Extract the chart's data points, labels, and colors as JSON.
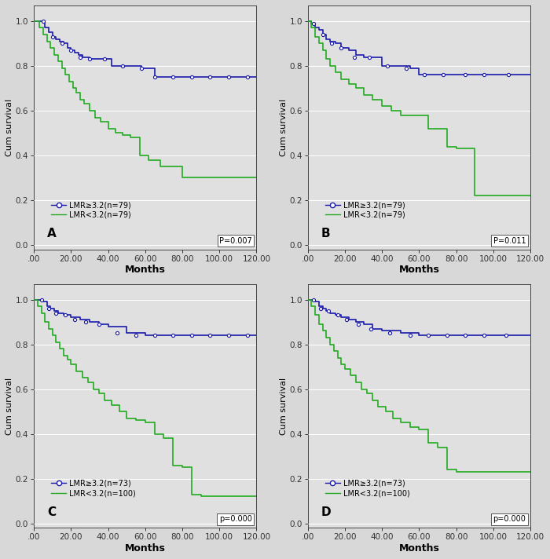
{
  "fig_bg": "#d8d8d8",
  "panel_bg": "#e0e0e0",
  "panels": [
    {
      "label": "A",
      "pvalue": "P=0.007",
      "legend_high": "LMR≥3.2(n=79)",
      "legend_low": "LMR<3.2(n=79)",
      "high_color": "#1a1aaa",
      "low_color": "#22aa22",
      "high_x": [
        0,
        4,
        6,
        8,
        10,
        12,
        14,
        16,
        18,
        20,
        22,
        24,
        26,
        28,
        30,
        34,
        38,
        42,
        50,
        58,
        62,
        65,
        70,
        75,
        80,
        90,
        100,
        110,
        120
      ],
      "high_y": [
        1.0,
        1.0,
        0.97,
        0.95,
        0.93,
        0.92,
        0.91,
        0.9,
        0.88,
        0.87,
        0.86,
        0.85,
        0.84,
        0.84,
        0.83,
        0.83,
        0.83,
        0.8,
        0.8,
        0.79,
        0.79,
        0.75,
        0.75,
        0.75,
        0.75,
        0.75,
        0.75,
        0.75,
        0.75
      ],
      "high_censor_x": [
        5,
        10,
        15,
        20,
        25,
        30,
        38,
        48,
        58,
        65,
        75,
        85,
        95,
        105,
        115
      ],
      "high_censor_y": [
        1.0,
        0.93,
        0.9,
        0.87,
        0.84,
        0.83,
        0.83,
        0.8,
        0.79,
        0.75,
        0.75,
        0.75,
        0.75,
        0.75,
        0.75
      ],
      "low_x": [
        0,
        3,
        5,
        7,
        9,
        11,
        13,
        15,
        17,
        19,
        21,
        23,
        25,
        27,
        30,
        33,
        36,
        40,
        44,
        48,
        52,
        55,
        57,
        62,
        68,
        80,
        88,
        92,
        100,
        110,
        120
      ],
      "low_y": [
        1.0,
        0.97,
        0.94,
        0.91,
        0.88,
        0.85,
        0.82,
        0.79,
        0.76,
        0.73,
        0.7,
        0.68,
        0.65,
        0.63,
        0.6,
        0.57,
        0.55,
        0.52,
        0.5,
        0.49,
        0.48,
        0.48,
        0.4,
        0.38,
        0.35,
        0.3,
        0.3,
        0.3,
        0.3,
        0.3,
        0.3
      ],
      "xlim": [
        0,
        120
      ],
      "ylim": [
        -0.02,
        1.07
      ],
      "xticks": [
        0,
        20,
        40,
        60,
        80,
        100,
        120
      ],
      "yticks": [
        0.0,
        0.2,
        0.4,
        0.6,
        0.8,
        1.0
      ]
    },
    {
      "label": "B",
      "pvalue": "P=0.011",
      "legend_high": "LMR≥3.2(n=79)",
      "legend_low": "LMR<3.2(n=79)",
      "high_color": "#1a1aaa",
      "low_color": "#22aa22",
      "high_x": [
        0,
        2,
        4,
        6,
        8,
        10,
        12,
        15,
        18,
        22,
        26,
        30,
        35,
        40,
        48,
        55,
        60,
        65,
        70,
        80,
        90,
        100,
        110,
        120
      ],
      "high_y": [
        1.0,
        0.99,
        0.97,
        0.96,
        0.94,
        0.92,
        0.91,
        0.9,
        0.88,
        0.87,
        0.85,
        0.84,
        0.84,
        0.8,
        0.8,
        0.79,
        0.76,
        0.76,
        0.76,
        0.76,
        0.76,
        0.76,
        0.76,
        0.76
      ],
      "high_censor_x": [
        3,
        8,
        13,
        18,
        25,
        33,
        43,
        53,
        63,
        73,
        85,
        95,
        108
      ],
      "high_censor_y": [
        0.99,
        0.94,
        0.9,
        0.88,
        0.84,
        0.84,
        0.8,
        0.79,
        0.76,
        0.76,
        0.76,
        0.76,
        0.76
      ],
      "low_x": [
        0,
        2,
        4,
        6,
        8,
        10,
        12,
        15,
        18,
        22,
        26,
        30,
        35,
        40,
        45,
        50,
        55,
        65,
        75,
        80,
        85,
        90,
        95,
        100,
        110,
        120
      ],
      "low_y": [
        1.0,
        0.97,
        0.93,
        0.9,
        0.87,
        0.83,
        0.8,
        0.77,
        0.74,
        0.72,
        0.7,
        0.67,
        0.65,
        0.62,
        0.6,
        0.58,
        0.58,
        0.52,
        0.44,
        0.43,
        0.43,
        0.22,
        0.22,
        0.22,
        0.22,
        0.22
      ],
      "xlim": [
        0,
        120
      ],
      "ylim": [
        -0.02,
        1.07
      ],
      "xticks": [
        0,
        20,
        40,
        60,
        80,
        100,
        120
      ],
      "yticks": [
        0.0,
        0.2,
        0.4,
        0.6,
        0.8,
        1.0
      ]
    },
    {
      "label": "C",
      "pvalue": "p=0.000",
      "legend_high": "LMR≥3.2(n=73)",
      "legend_low": "LMR<3.2(n=100)",
      "high_color": "#1a1aaa",
      "low_color": "#22aa22",
      "high_x": [
        0,
        3,
        5,
        7,
        9,
        11,
        13,
        16,
        20,
        25,
        30,
        35,
        40,
        50,
        60,
        70,
        80,
        90,
        100,
        110,
        120
      ],
      "high_y": [
        1.0,
        1.0,
        0.99,
        0.97,
        0.96,
        0.95,
        0.94,
        0.93,
        0.92,
        0.91,
        0.9,
        0.89,
        0.88,
        0.85,
        0.84,
        0.84,
        0.84,
        0.84,
        0.84,
        0.84,
        0.84
      ],
      "high_censor_x": [
        4,
        8,
        12,
        17,
        22,
        28,
        35,
        45,
        55,
        65,
        75,
        85,
        95,
        105,
        115
      ],
      "high_censor_y": [
        1.0,
        0.96,
        0.94,
        0.93,
        0.91,
        0.9,
        0.89,
        0.85,
        0.84,
        0.84,
        0.84,
        0.84,
        0.84,
        0.84,
        0.84
      ],
      "low_x": [
        0,
        2,
        4,
        6,
        8,
        10,
        12,
        14,
        16,
        18,
        20,
        23,
        26,
        29,
        32,
        35,
        38,
        42,
        46,
        50,
        55,
        60,
        65,
        70,
        75,
        80,
        85,
        90,
        100,
        110,
        120
      ],
      "low_y": [
        1.0,
        0.97,
        0.94,
        0.9,
        0.87,
        0.84,
        0.81,
        0.78,
        0.75,
        0.73,
        0.71,
        0.68,
        0.65,
        0.63,
        0.6,
        0.58,
        0.55,
        0.53,
        0.5,
        0.47,
        0.46,
        0.45,
        0.4,
        0.38,
        0.26,
        0.25,
        0.13,
        0.12,
        0.12,
        0.12,
        0.12
      ],
      "xlim": [
        0,
        120
      ],
      "ylim": [
        -0.02,
        1.07
      ],
      "xticks": [
        0,
        20,
        40,
        60,
        80,
        100,
        120
      ],
      "yticks": [
        0.0,
        0.2,
        0.4,
        0.6,
        0.8,
        1.0
      ]
    },
    {
      "label": "D",
      "pvalue": "p=0.000",
      "legend_high": "LMR≥3.2(n=73)",
      "legend_low": "LMR<3.2(n=100)",
      "high_color": "#1a1aaa",
      "low_color": "#22aa22",
      "high_x": [
        0,
        2,
        4,
        6,
        8,
        10,
        12,
        15,
        18,
        22,
        26,
        30,
        35,
        40,
        50,
        60,
        70,
        80,
        90,
        100,
        110,
        120
      ],
      "high_y": [
        1.0,
        1.0,
        0.99,
        0.97,
        0.96,
        0.95,
        0.94,
        0.93,
        0.92,
        0.91,
        0.9,
        0.89,
        0.87,
        0.86,
        0.85,
        0.84,
        0.84,
        0.84,
        0.84,
        0.84,
        0.84,
        0.84
      ],
      "high_censor_x": [
        3,
        7,
        11,
        16,
        21,
        27,
        34,
        44,
        55,
        65,
        75,
        85,
        95,
        107
      ],
      "high_censor_y": [
        1.0,
        0.96,
        0.95,
        0.93,
        0.91,
        0.89,
        0.87,
        0.85,
        0.84,
        0.84,
        0.84,
        0.84,
        0.84,
        0.84
      ],
      "low_x": [
        0,
        2,
        4,
        6,
        8,
        10,
        12,
        14,
        16,
        18,
        20,
        23,
        26,
        29,
        32,
        35,
        38,
        42,
        46,
        50,
        55,
        60,
        65,
        70,
        75,
        80,
        90,
        100,
        110,
        120
      ],
      "low_y": [
        1.0,
        0.97,
        0.93,
        0.89,
        0.86,
        0.83,
        0.8,
        0.77,
        0.74,
        0.71,
        0.69,
        0.66,
        0.63,
        0.6,
        0.58,
        0.55,
        0.52,
        0.5,
        0.47,
        0.45,
        0.43,
        0.42,
        0.36,
        0.34,
        0.24,
        0.23,
        0.23,
        0.23,
        0.23,
        0.23
      ],
      "xlim": [
        0,
        120
      ],
      "ylim": [
        -0.02,
        1.07
      ],
      "xticks": [
        0,
        20,
        40,
        60,
        80,
        100,
        120
      ],
      "yticks": [
        0.0,
        0.2,
        0.4,
        0.6,
        0.8,
        1.0
      ]
    }
  ]
}
